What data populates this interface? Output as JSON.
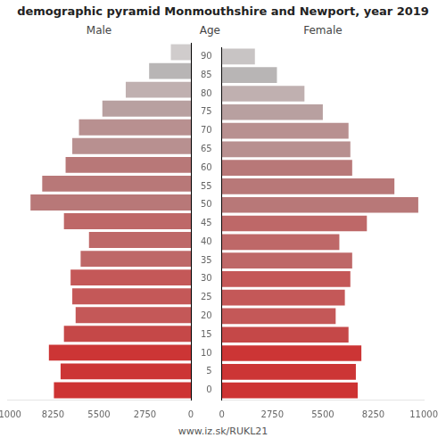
{
  "chart_data": {
    "type": "bar",
    "orientation": "horizontal",
    "title": "demographic pyramid Monmouthshire and Newport, year 2019",
    "y_label": "Age",
    "annotations": [
      "www.iz.sk/RUKL21"
    ],
    "categories": [
      "0",
      "5",
      "10",
      "15",
      "20",
      "25",
      "30",
      "35",
      "40",
      "45",
      "50",
      "55",
      "60",
      "65",
      "70",
      "75",
      "80",
      "85",
      "90"
    ],
    "series": [
      {
        "name": "Male",
        "values": [
          8200,
          7800,
          8500,
          7600,
          6900,
          7100,
          7200,
          6600,
          6100,
          7600,
          9600,
          8900,
          7500,
          7100,
          6700,
          5300,
          3900,
          2500,
          1200
        ],
        "colors": [
          "#cd3333",
          "#cc3535",
          "#cc3535",
          "#c54848",
          "#c45858",
          "#c45858",
          "#c45858",
          "#be6868",
          "#be6868",
          "#be6868",
          "#b87878",
          "#b87878",
          "#b87878",
          "#b89090",
          "#b89090",
          "#b8a0a0",
          "#c0b0b0",
          "#b8b5b5",
          "#d0cccc"
        ]
      },
      {
        "name": "Female",
        "values": [
          7400,
          7300,
          7600,
          6900,
          6200,
          6700,
          7000,
          7100,
          6400,
          7900,
          10700,
          9400,
          7100,
          7000,
          6900,
          5500,
          4500,
          3000,
          1800
        ],
        "colors": [
          "#cd3333",
          "#cc3535",
          "#cc3535",
          "#c54848",
          "#c45858",
          "#c45858",
          "#c45858",
          "#be6868",
          "#be6868",
          "#be6868",
          "#b87878",
          "#b87878",
          "#b87878",
          "#b89090",
          "#b89090",
          "#b8a0a0",
          "#c0b0b0",
          "#b8b5b5",
          "#c8c4c4"
        ]
      }
    ],
    "xlim": [
      0,
      11000
    ],
    "xticks": [
      0,
      2750,
      5500,
      8250,
      11000
    ],
    "grid": false
  }
}
